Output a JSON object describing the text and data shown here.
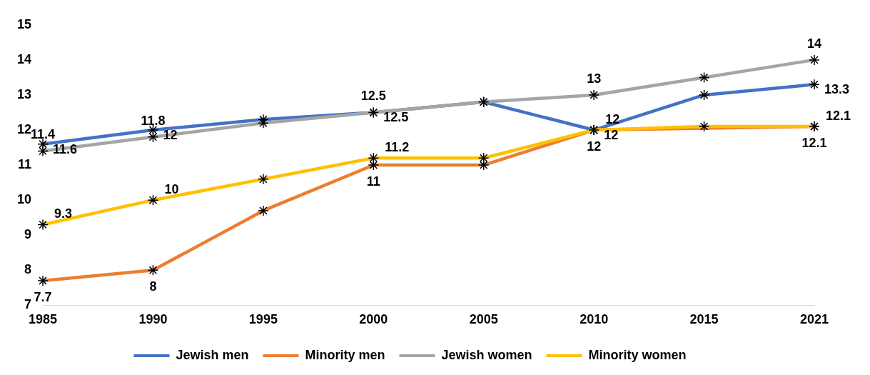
{
  "chart_data": {
    "type": "line",
    "categories": [
      "1985",
      "1990",
      "1995",
      "2000",
      "2005",
      "2010",
      "2015",
      "2021"
    ],
    "series": [
      {
        "name": "Jewish men",
        "color": "#4472c4",
        "values": [
          11.6,
          12,
          12.3,
          12.5,
          12.8,
          12,
          13,
          13.3
        ],
        "value_labels": [
          "11.6",
          "12",
          null,
          "12.5",
          null,
          "12",
          null,
          "13.3"
        ]
      },
      {
        "name": "Minority men",
        "color": "#ed7d31",
        "values": [
          7.7,
          8,
          9.7,
          11,
          11,
          12,
          null,
          12.1
        ],
        "value_labels": [
          "7.7",
          "8",
          null,
          "11",
          null,
          "12",
          null,
          "12.1"
        ]
      },
      {
        "name": "Jewish women",
        "color": "#a5a5a5",
        "values": [
          11.4,
          11.8,
          12.2,
          12.5,
          12.8,
          13,
          13.5,
          14
        ],
        "value_labels": [
          "11.4",
          "11.8",
          null,
          "12.5",
          null,
          "13",
          null,
          "14"
        ]
      },
      {
        "name": "Minority women",
        "color": "#ffc000",
        "values": [
          9.3,
          10,
          10.6,
          11.2,
          11.2,
          12,
          12.1,
          12.1
        ],
        "value_labels": [
          "9.3",
          "10",
          null,
          "11.2",
          null,
          "12",
          null,
          "12.1"
        ]
      }
    ],
    "ylim": [
      7,
      15
    ],
    "yticks": [
      7,
      8,
      9,
      10,
      11,
      12,
      13,
      14,
      15
    ],
    "grid": false,
    "legend": "bottom",
    "marker": "cross",
    "line_style": "solid"
  }
}
